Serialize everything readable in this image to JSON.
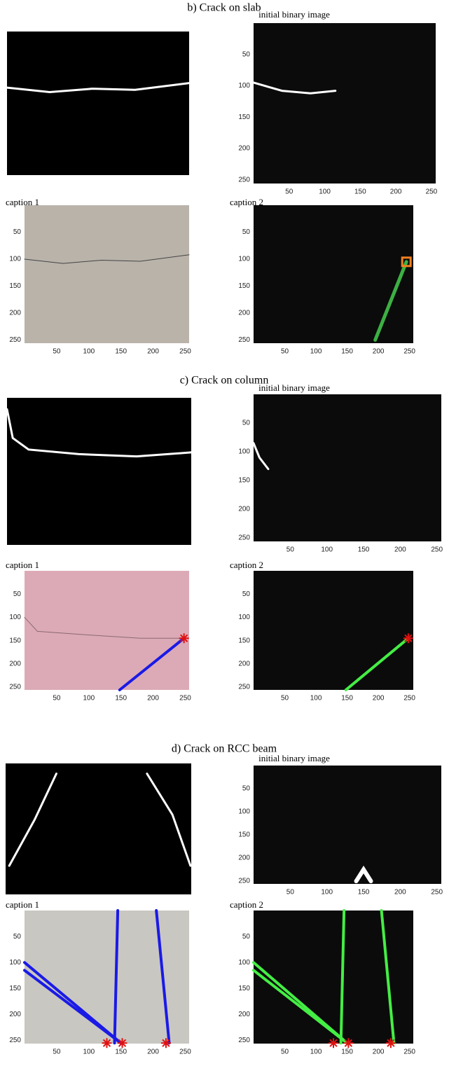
{
  "sections": [
    {
      "title": "b) Crack on slab",
      "binary_title": "initial binary image",
      "caption1": "caption 1",
      "caption2": "caption 2",
      "axes": [
        {
          "xticks": [
            50,
            100,
            150,
            200,
            250
          ],
          "yticks": [
            50,
            100,
            150,
            200,
            250
          ]
        },
        {
          "xticks": [
            50,
            100,
            150,
            200,
            250
          ],
          "yticks": [
            50,
            100,
            150,
            200,
            250
          ]
        },
        {
          "xticks": [
            50,
            100,
            150,
            200,
            250
          ],
          "yticks": [
            50,
            100,
            150,
            200,
            250
          ]
        }
      ]
    },
    {
      "title": "c) Crack on column",
      "binary_title": "initial binary image",
      "caption1": "caption 1",
      "caption2": "caption 2",
      "axes": [
        {
          "xticks": [
            50,
            100,
            150,
            200,
            250
          ],
          "yticks": [
            50,
            100,
            150,
            200,
            250
          ]
        },
        {
          "xticks": [
            50,
            100,
            150,
            200,
            250
          ],
          "yticks": [
            50,
            100,
            150,
            200,
            250
          ]
        },
        {
          "xticks": [
            50,
            100,
            150,
            200,
            250
          ],
          "yticks": [
            50,
            100,
            150,
            200,
            250
          ]
        }
      ]
    },
    {
      "title": "d) Crack on RCC beam",
      "binary_title": "initial binary image",
      "caption1": "caption 1",
      "caption2": "caption 2",
      "axes": [
        {
          "xticks": [
            50,
            100,
            150,
            200,
            250
          ],
          "yticks": [
            50,
            100,
            150,
            200,
            250
          ]
        },
        {
          "xticks": [
            50,
            100,
            150,
            200,
            250
          ],
          "yticks": [
            50,
            100,
            150,
            200,
            250
          ]
        },
        {
          "xticks": [
            50,
            100,
            150,
            200,
            250
          ],
          "yticks": [
            50,
            100,
            150,
            200,
            250
          ]
        }
      ]
    }
  ]
}
